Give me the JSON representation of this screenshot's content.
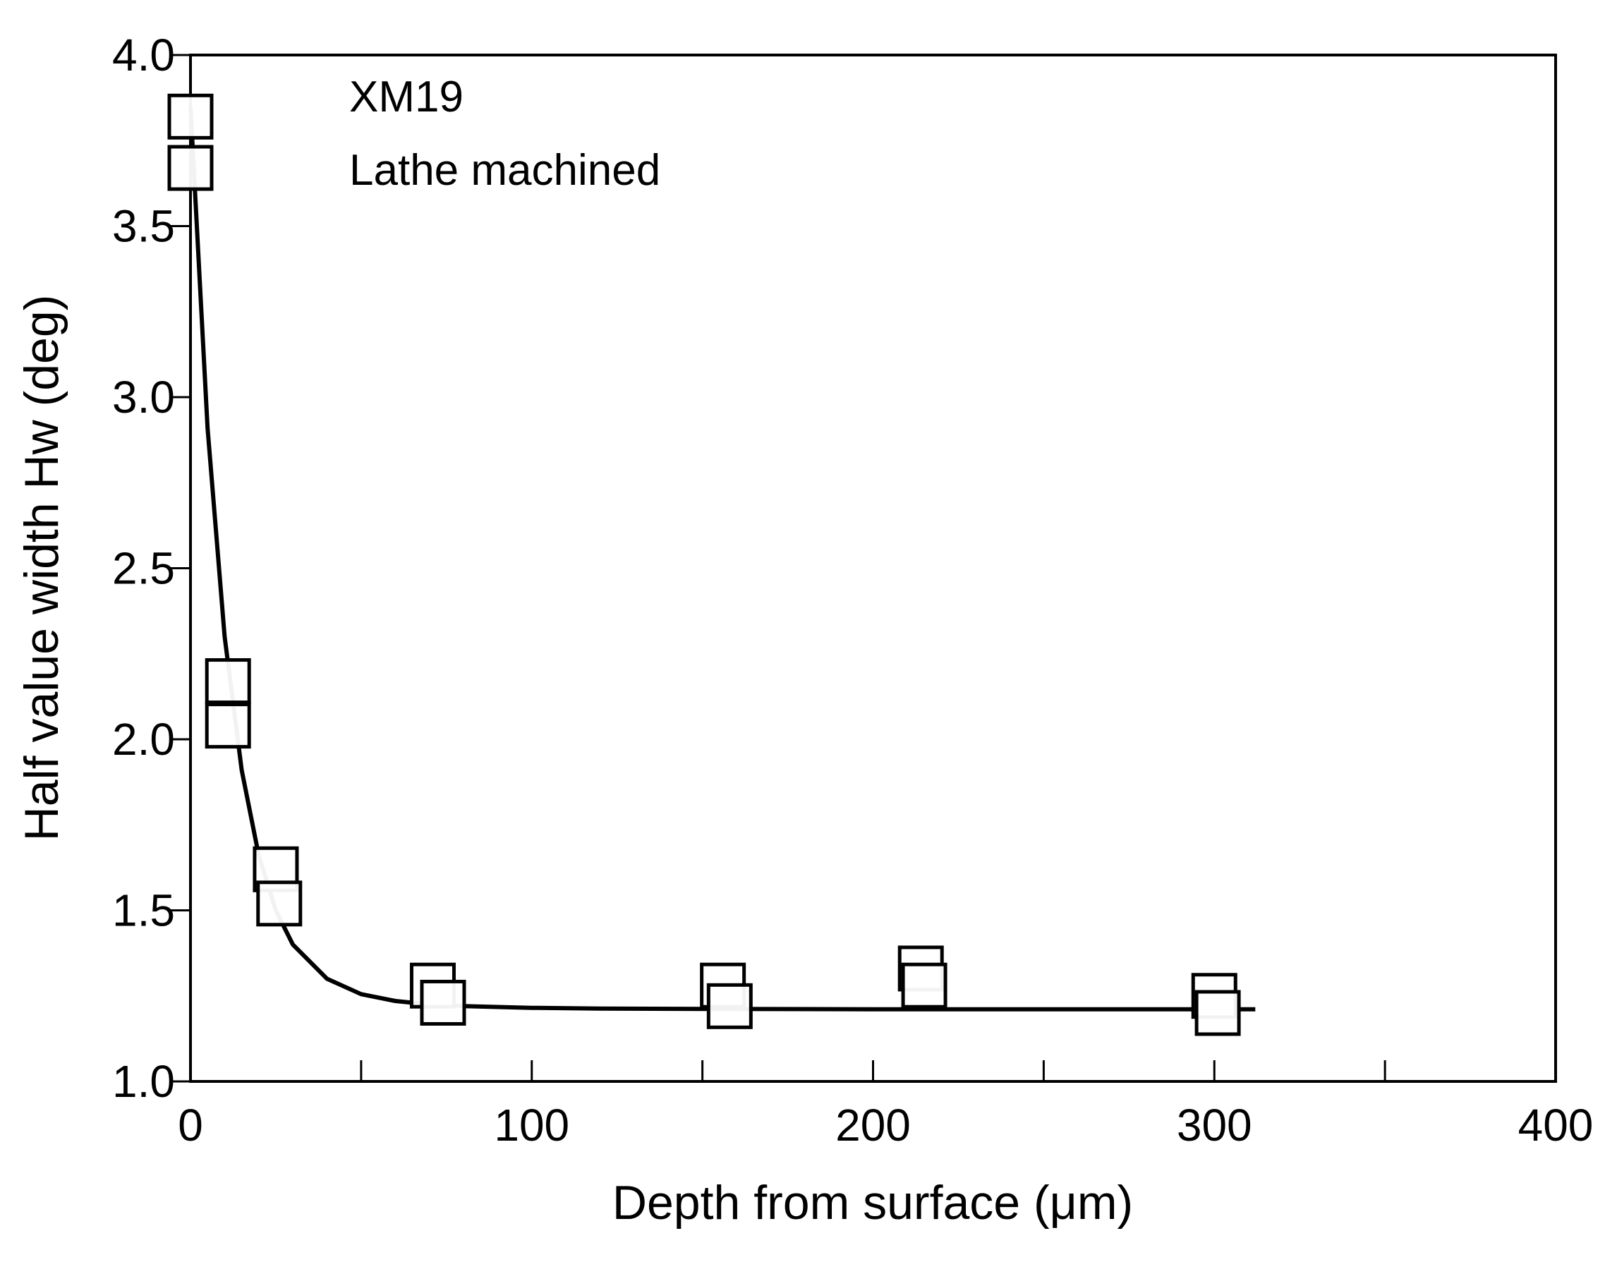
{
  "chart_data": {
    "type": "scatter",
    "xlabel": "Depth from surface (μm)",
    "ylabel": "Half value width Hw (deg)",
    "xlim": [
      0,
      400
    ],
    "ylim": [
      1.0,
      4.0
    ],
    "x_ticks": [
      0,
      100,
      200,
      300,
      400
    ],
    "x_tick_labels": [
      "0",
      "100",
      "200",
      "300",
      "400"
    ],
    "x_minor_ticks": [
      50,
      150,
      250,
      350
    ],
    "y_ticks": [
      1.0,
      1.5,
      2.0,
      2.5,
      3.0,
      3.5,
      4.0
    ],
    "y_tick_labels": [
      "1.0",
      "1.5",
      "2.0",
      "2.5",
      "3.0",
      "3.5",
      "4.0"
    ],
    "grid": false,
    "legend": null,
    "annotations": [
      "XM19",
      "Lathe machined"
    ],
    "series": [
      {
        "marker": "open-square",
        "points": [
          {
            "x": 0,
            "y": 3.82
          },
          {
            "x": 0,
            "y": 3.67
          },
          {
            "x": 11,
            "y": 2.17
          },
          {
            "x": 11,
            "y": 2.04
          },
          {
            "x": 25,
            "y": 1.62
          },
          {
            "x": 26,
            "y": 1.52
          },
          {
            "x": 71,
            "y": 1.28
          },
          {
            "x": 74,
            "y": 1.23
          },
          {
            "x": 156,
            "y": 1.28
          },
          {
            "x": 158,
            "y": 1.22
          },
          {
            "x": 214,
            "y": 1.33
          },
          {
            "x": 215,
            "y": 1.28
          },
          {
            "x": 300,
            "y": 1.25
          },
          {
            "x": 301,
            "y": 1.2
          }
        ]
      },
      {
        "type": "line",
        "x": [
          0,
          5,
          10,
          15,
          20,
          25,
          30,
          40,
          50,
          60,
          70,
          80,
          100,
          120,
          150,
          200,
          250,
          300,
          312
        ],
        "y": [
          3.85,
          2.91,
          2.3,
          1.91,
          1.66,
          1.5,
          1.4,
          1.3,
          1.255,
          1.235,
          1.225,
          1.22,
          1.215,
          1.213,
          1.212,
          1.211,
          1.211,
          1.211,
          1.211
        ]
      }
    ]
  }
}
